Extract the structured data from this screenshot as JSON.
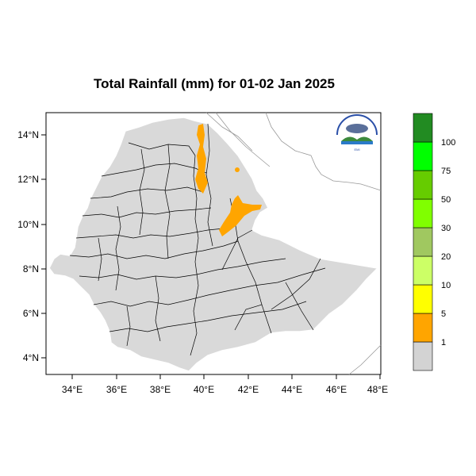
{
  "title": "Total Rainfall (mm) for 01-02 Jan 2025",
  "axes": {
    "x_ticks": [
      "34°E",
      "36°E",
      "38°E",
      "40°E",
      "42°E",
      "44°E",
      "46°E",
      "48°E"
    ],
    "y_ticks": [
      "14°N",
      "12°N",
      "10°N",
      "8°N",
      "6°N",
      "4°N"
    ],
    "lon_range": [
      33,
      48.2
    ],
    "lat_range": [
      3.2,
      15.2
    ]
  },
  "legend": {
    "colors": [
      "#d3d3d3",
      "#ffa500",
      "#ffff00",
      "#ccff66",
      "#a0c860",
      "#80ff00",
      "#66cc00",
      "#00ff00",
      "#00dd00",
      "#228b22"
    ],
    "labels": [
      "1",
      "5",
      "10",
      "20",
      "30",
      "50",
      "75",
      "100"
    ]
  },
  "colors": {
    "country_fill": "#d9d9d9",
    "rain_1_5": "#ffa500"
  },
  "logo_icon": "ethiopian-meteorology-institute-logo-icon"
}
